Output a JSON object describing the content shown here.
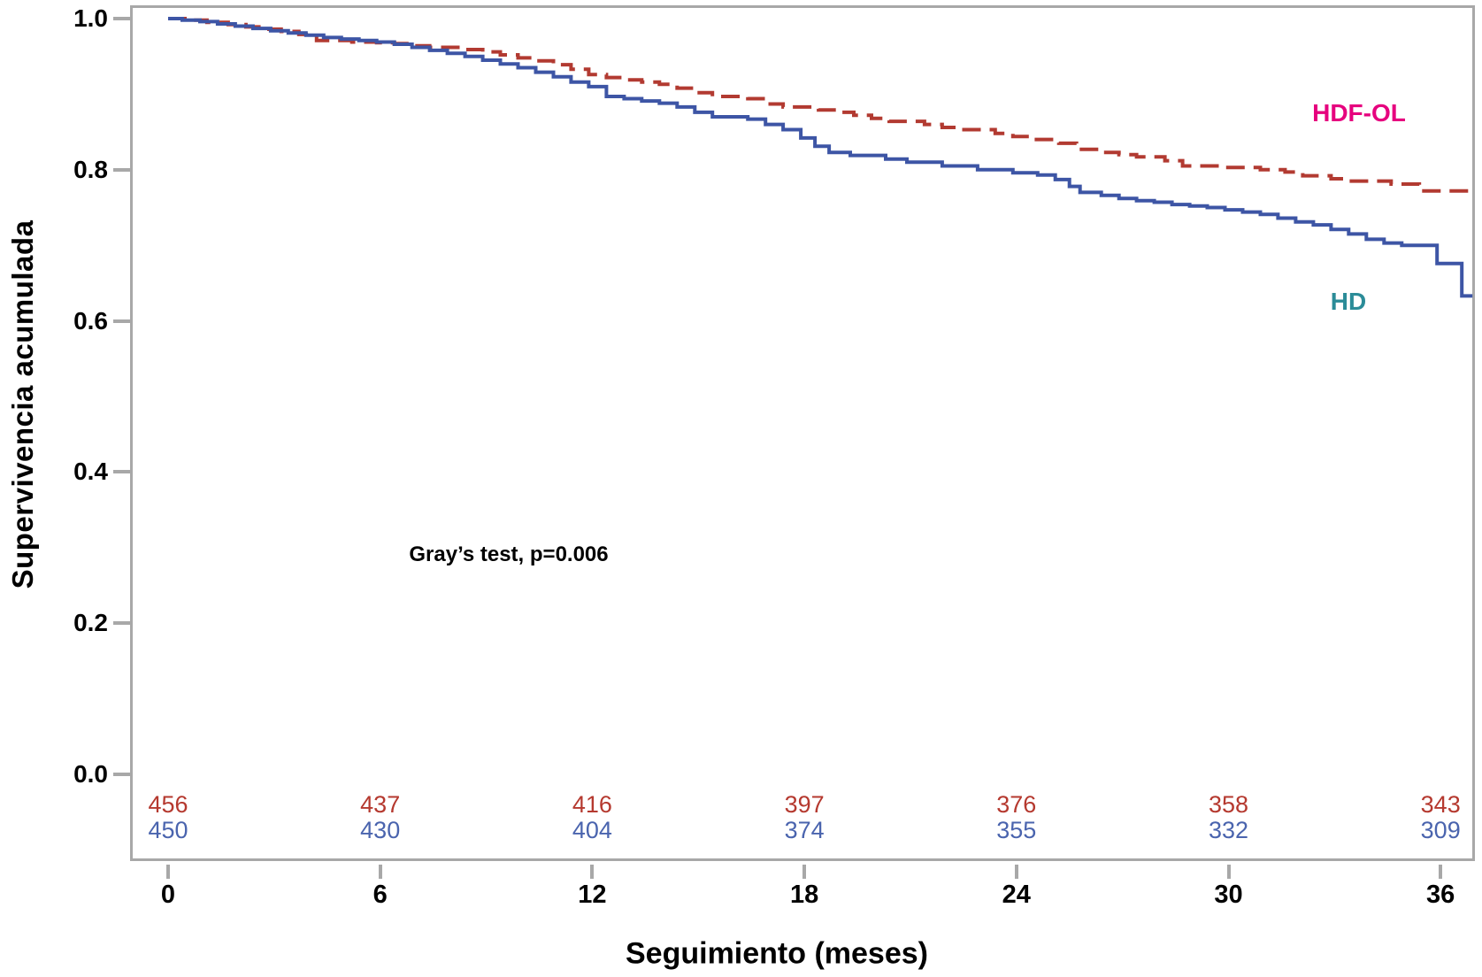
{
  "figure": {
    "y_axis_title": "Supervivencia acumulada",
    "x_axis_title": "Seguimiento (meses)",
    "annotation": "Gray’s test, p=0.006"
  },
  "chart_data": {
    "type": "line",
    "subtype": "kaplan-meier-step-curves",
    "title": "",
    "xlabel": "Seguimiento (meses)",
    "ylabel": "Supervivencia acumulada",
    "xlim": [
      0,
      37
    ],
    "ylim": [
      0.0,
      1.0
    ],
    "xticks": [
      0,
      6,
      12,
      18,
      24,
      30,
      36
    ],
    "yticks": [
      1.0,
      0.8,
      0.6,
      0.4,
      0.2,
      0.0
    ],
    "grid": false,
    "legend_position": "inline-right",
    "annotation": "Gray’s test, p=0.006",
    "series": [
      {
        "name": "HDF-OL",
        "color": "#b23a31",
        "label_color": "#e6007e",
        "line_style": "dashed",
        "points": [
          [
            0,
            1.0
          ],
          [
            0.6,
            0.998
          ],
          [
            1.1,
            0.995
          ],
          [
            1.7,
            0.992
          ],
          [
            2.2,
            0.989
          ],
          [
            2.7,
            0.986
          ],
          [
            3.2,
            0.983
          ],
          [
            3.7,
            0.979
          ],
          [
            4.2,
            0.971
          ],
          [
            5.2,
            0.969
          ],
          [
            5.9,
            0.968
          ],
          [
            6.4,
            0.967
          ],
          [
            6.9,
            0.964
          ],
          [
            7.4,
            0.962
          ],
          [
            8.4,
            0.959
          ],
          [
            8.9,
            0.956
          ],
          [
            9.4,
            0.952
          ],
          [
            9.9,
            0.948
          ],
          [
            10.4,
            0.944
          ],
          [
            10.9,
            0.939
          ],
          [
            11.4,
            0.933
          ],
          [
            11.9,
            0.926
          ],
          [
            12.4,
            0.922
          ],
          [
            12.9,
            0.919
          ],
          [
            13.4,
            0.916
          ],
          [
            13.9,
            0.913
          ],
          [
            14.4,
            0.908
          ],
          [
            14.9,
            0.902
          ],
          [
            15.4,
            0.897
          ],
          [
            16.4,
            0.894
          ],
          [
            16.9,
            0.887
          ],
          [
            17.4,
            0.883
          ],
          [
            18.4,
            0.879
          ],
          [
            18.9,
            0.876
          ],
          [
            19.4,
            0.872
          ],
          [
            19.9,
            0.868
          ],
          [
            20.4,
            0.864
          ],
          [
            21.4,
            0.86
          ],
          [
            21.9,
            0.856
          ],
          [
            22.4,
            0.853
          ],
          [
            23.4,
            0.848
          ],
          [
            23.9,
            0.844
          ],
          [
            24.5,
            0.84
          ],
          [
            25.2,
            0.835
          ],
          [
            25.7,
            0.827
          ],
          [
            26.4,
            0.823
          ],
          [
            26.9,
            0.82
          ],
          [
            27.4,
            0.817
          ],
          [
            28.2,
            0.812
          ],
          [
            28.7,
            0.805
          ],
          [
            29.9,
            0.803
          ],
          [
            30.9,
            0.8
          ],
          [
            31.6,
            0.797
          ],
          [
            32.1,
            0.792
          ],
          [
            32.9,
            0.788
          ],
          [
            33.4,
            0.785
          ],
          [
            34.6,
            0.781
          ],
          [
            35.4,
            0.772
          ],
          [
            36.9,
            0.77
          ]
        ]
      },
      {
        "name": "HD",
        "color": "#3d55a5",
        "label_color": "#2b8c98",
        "line_style": "solid",
        "points": [
          [
            0,
            1.0
          ],
          [
            0.4,
            0.998
          ],
          [
            0.9,
            0.996
          ],
          [
            1.4,
            0.993
          ],
          [
            1.9,
            0.99
          ],
          [
            2.4,
            0.987
          ],
          [
            2.9,
            0.984
          ],
          [
            3.4,
            0.981
          ],
          [
            3.9,
            0.978
          ],
          [
            4.4,
            0.975
          ],
          [
            4.9,
            0.973
          ],
          [
            5.4,
            0.971
          ],
          [
            5.9,
            0.969
          ],
          [
            6.4,
            0.966
          ],
          [
            6.9,
            0.962
          ],
          [
            7.4,
            0.958
          ],
          [
            7.9,
            0.954
          ],
          [
            8.4,
            0.95
          ],
          [
            8.9,
            0.945
          ],
          [
            9.4,
            0.94
          ],
          [
            9.9,
            0.935
          ],
          [
            10.4,
            0.929
          ],
          [
            10.9,
            0.923
          ],
          [
            11.4,
            0.916
          ],
          [
            11.9,
            0.91
          ],
          [
            12.4,
            0.897
          ],
          [
            12.9,
            0.894
          ],
          [
            13.4,
            0.891
          ],
          [
            13.9,
            0.888
          ],
          [
            14.4,
            0.883
          ],
          [
            14.9,
            0.876
          ],
          [
            15.4,
            0.87
          ],
          [
            16.4,
            0.867
          ],
          [
            16.9,
            0.86
          ],
          [
            17.4,
            0.853
          ],
          [
            17.9,
            0.842
          ],
          [
            18.3,
            0.831
          ],
          [
            18.7,
            0.823
          ],
          [
            19.3,
            0.819
          ],
          [
            20.3,
            0.814
          ],
          [
            20.9,
            0.81
          ],
          [
            21.9,
            0.805
          ],
          [
            22.9,
            0.8
          ],
          [
            23.9,
            0.796
          ],
          [
            24.6,
            0.793
          ],
          [
            25.1,
            0.787
          ],
          [
            25.5,
            0.778
          ],
          [
            25.8,
            0.77
          ],
          [
            26.4,
            0.766
          ],
          [
            26.9,
            0.762
          ],
          [
            27.4,
            0.759
          ],
          [
            27.9,
            0.757
          ],
          [
            28.4,
            0.754
          ],
          [
            28.9,
            0.752
          ],
          [
            29.4,
            0.75
          ],
          [
            29.9,
            0.747
          ],
          [
            30.4,
            0.744
          ],
          [
            30.9,
            0.741
          ],
          [
            31.4,
            0.736
          ],
          [
            31.9,
            0.731
          ],
          [
            32.4,
            0.727
          ],
          [
            32.9,
            0.721
          ],
          [
            33.4,
            0.715
          ],
          [
            33.9,
            0.708
          ],
          [
            34.4,
            0.703
          ],
          [
            34.9,
            0.7
          ],
          [
            35.9,
            0.676
          ],
          [
            36.6,
            0.633
          ],
          [
            36.9,
            0.633
          ]
        ]
      }
    ],
    "at_risk": {
      "months": [
        0,
        6,
        12,
        18,
        24,
        30,
        36
      ],
      "rows": [
        {
          "name": "HDF-OL",
          "color": "#b5392f",
          "counts": [
            456,
            437,
            416,
            397,
            376,
            358,
            343
          ]
        },
        {
          "name": "HD",
          "color": "#4a64ae",
          "counts": [
            450,
            430,
            404,
            374,
            355,
            332,
            309
          ]
        }
      ]
    }
  }
}
